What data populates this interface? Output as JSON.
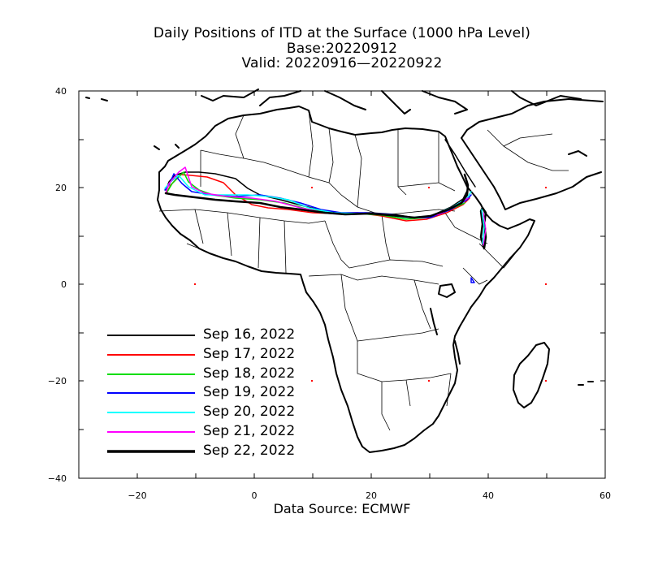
{
  "title": "Daily Positions of ITD at the Surface (1000 hPa Level)",
  "base": "Base:20220912",
  "valid": "Valid: 20220916—20220922",
  "source": "Data Source: ECMWF",
  "axes": {
    "x_ticks": [
      "−20",
      "0",
      "20",
      "40",
      "60"
    ],
    "y_ticks": [
      "40",
      "20",
      "0",
      "−20",
      "−40"
    ],
    "xlim": [
      -30,
      60
    ],
    "ylim": [
      -40,
      40
    ]
  },
  "legend": [
    {
      "label": "Sep 16, 2022",
      "color": "#000000"
    },
    {
      "label": "Sep 17, 2022",
      "color": "#ff0000"
    },
    {
      "label": "Sep 18, 2022",
      "color": "#00dd00"
    },
    {
      "label": "Sep 19, 2022",
      "color": "#0000ff"
    },
    {
      "label": "Sep 20, 2022",
      "color": "#00ffff"
    },
    {
      "label": "Sep 21, 2022",
      "color": "#ff00ff"
    },
    {
      "label": "Sep 22, 2022",
      "color": "#000000"
    }
  ]
}
